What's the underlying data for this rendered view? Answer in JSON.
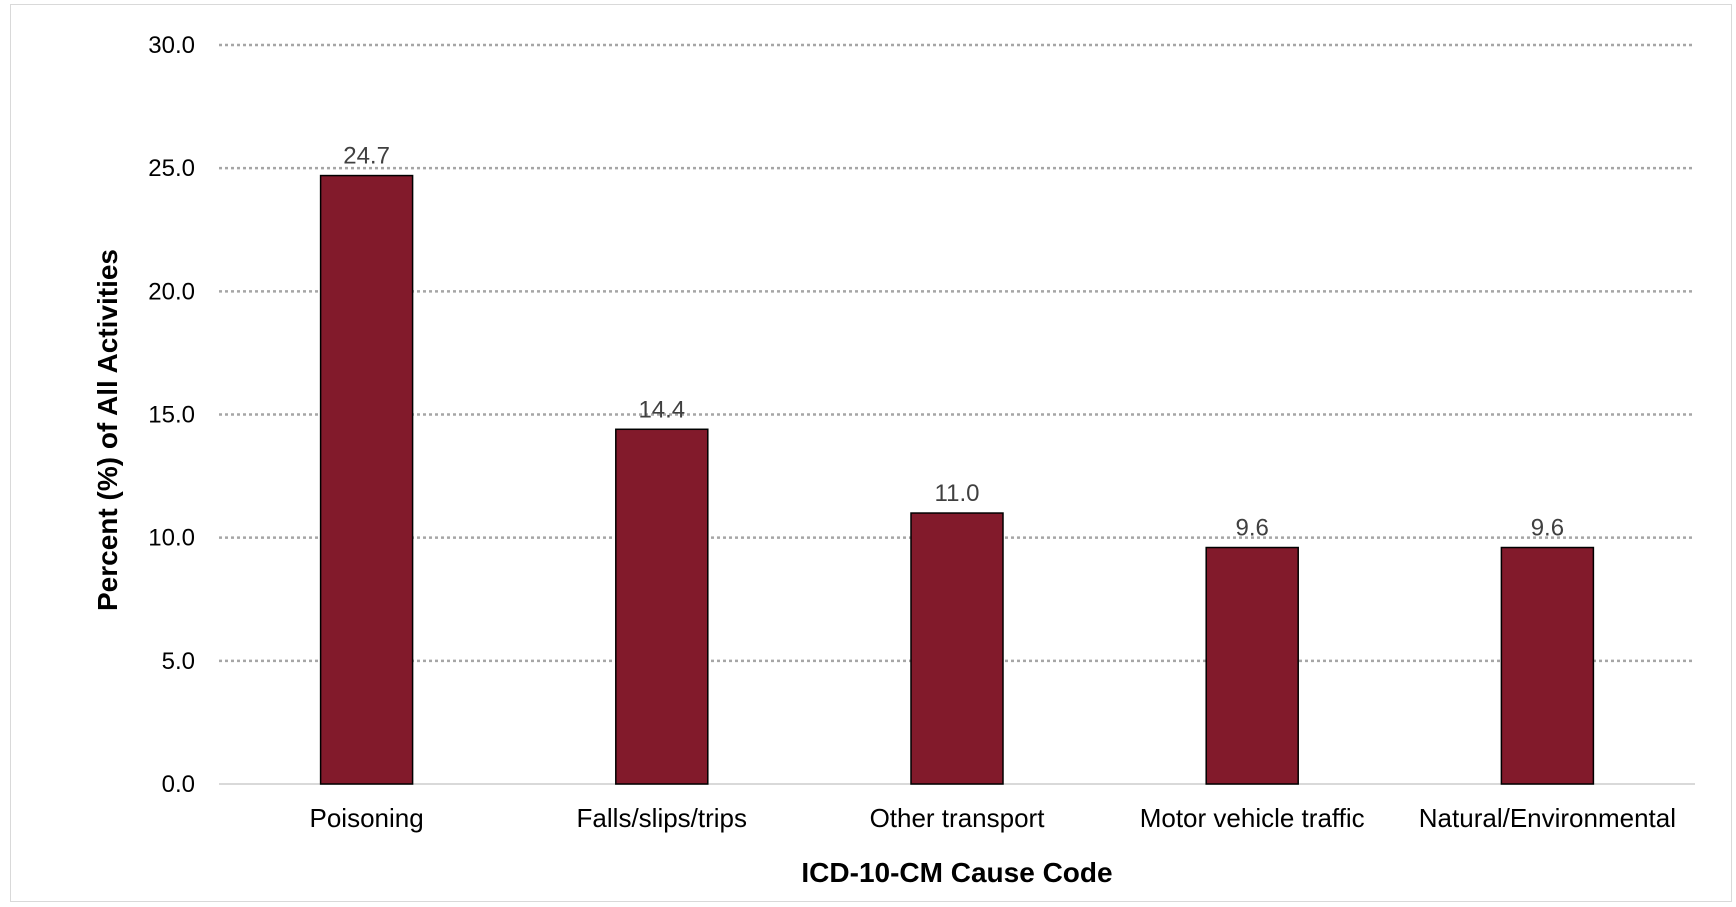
{
  "chart_data": {
    "type": "bar",
    "title": "",
    "xlabel": "ICD-10-CM Cause Code",
    "ylabel": "Percent (%) of All Activities",
    "categories": [
      "Poisoning",
      "Falls/slips/trips",
      "Other transport",
      "Motor vehicle traffic",
      "Natural/Environmental"
    ],
    "values": [
      24.7,
      14.4,
      11.0,
      9.6,
      9.6
    ],
    "data_labels": [
      "24.7",
      "14.4",
      "11.0",
      "9.6",
      "9.6"
    ],
    "ylim": [
      0,
      30
    ],
    "yticks": [
      "0.0",
      "5.0",
      "10.0",
      "15.0",
      "20.0",
      "25.0",
      "30.0"
    ],
    "grid": true,
    "legend": "none",
    "bar_color": "#821a2b",
    "bar_border_color": "#000000",
    "gridline_color": "#a6a6a6"
  }
}
